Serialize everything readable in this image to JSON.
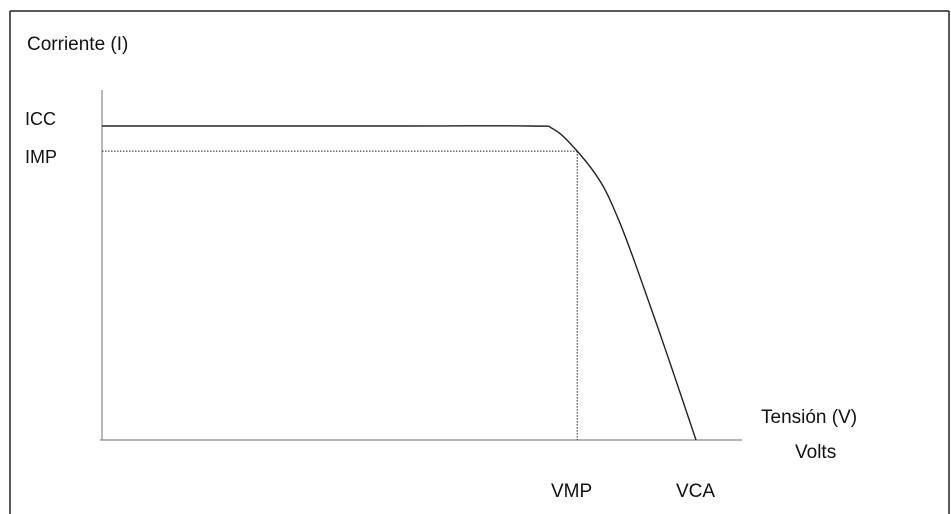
{
  "chart_data": {
    "type": "line",
    "title": "",
    "ylabel": "Corriente (I)",
    "xlabel_line1": "Tensión (V)",
    "xlabel_line2": "Volts",
    "y_ticks": [
      {
        "label": "ICC",
        "value": 1.0
      },
      {
        "label": "IMP",
        "value": 0.92
      }
    ],
    "x_ticks": [
      {
        "label": "VMP",
        "value": 0.8
      },
      {
        "label": "VCA",
        "value": 1.0
      }
    ],
    "xlim": [
      0,
      1.1
    ],
    "ylim": [
      0,
      1.0
    ],
    "grid": false,
    "series": [
      {
        "x": [
          0,
          0.5,
          0.72,
          0.76,
          0.8,
          0.84,
          0.87,
          0.9,
          0.95,
          1.0
        ],
        "y": [
          1.0,
          1.0,
          1.0,
          0.99,
          0.92,
          0.82,
          0.7,
          0.55,
          0.28,
          0.0
        ]
      }
    ],
    "reference_lines": [
      {
        "from": [
          0,
          0.92
        ],
        "to": [
          0.8,
          0.92
        ],
        "style": "dotted"
      },
      {
        "from": [
          0.8,
          0.92
        ],
        "to": [
          0.8,
          0
        ],
        "style": "dotted"
      }
    ]
  }
}
